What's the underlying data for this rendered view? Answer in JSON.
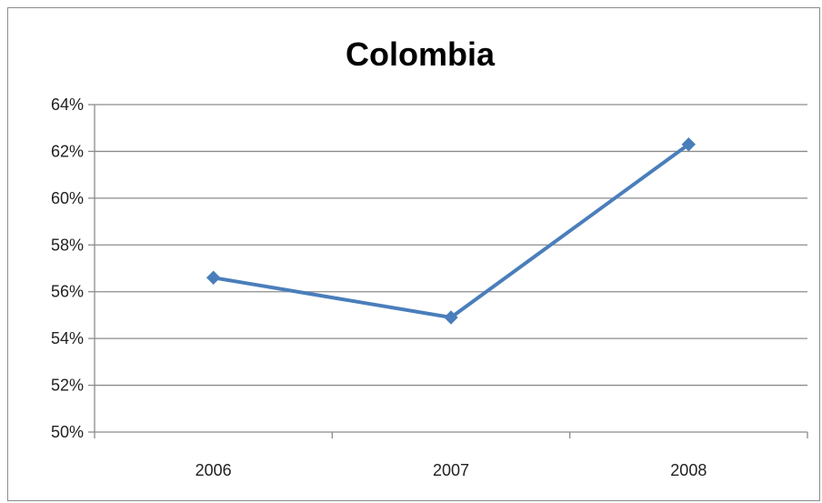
{
  "chart_data": {
    "type": "line",
    "title": "Colombia",
    "xlabel": "",
    "ylabel": "",
    "categories": [
      "2006",
      "2007",
      "2008"
    ],
    "series": [
      {
        "values": [
          56.6,
          54.9,
          62.3
        ],
        "color": "#4a7ebb"
      }
    ],
    "ylim": [
      50,
      64
    ],
    "yticks": [
      50,
      52,
      54,
      56,
      58,
      60,
      62,
      64
    ],
    "ytick_labels": [
      "50%",
      "52%",
      "54%",
      "56%",
      "58%",
      "60%",
      "62%",
      "64%"
    ],
    "grid": "horizontal",
    "legend": "none",
    "marker": "diamond"
  }
}
